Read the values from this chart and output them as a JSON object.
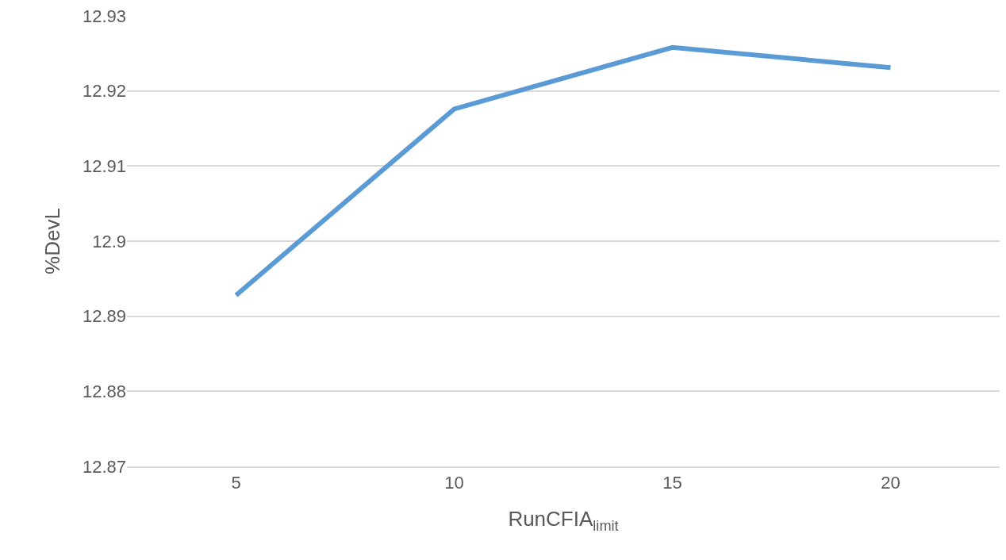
{
  "chart_data": {
    "type": "line",
    "xlabel": "RunCFIA$_{limit}$",
    "ylabel": "%DevL",
    "categories": [
      "5",
      "10",
      "15",
      "20"
    ],
    "series": [
      {
        "color": "#5b9bd5",
        "values": [
          12.8928,
          12.9176,
          12.9258,
          12.9231
        ]
      }
    ],
    "ylim": [
      12.87,
      12.93
    ],
    "yticks": [
      12.87,
      12.88,
      12.89,
      12.9,
      12.91,
      12.92,
      12.93
    ],
    "grid": "y",
    "marker": "none",
    "line_style": "solid"
  }
}
